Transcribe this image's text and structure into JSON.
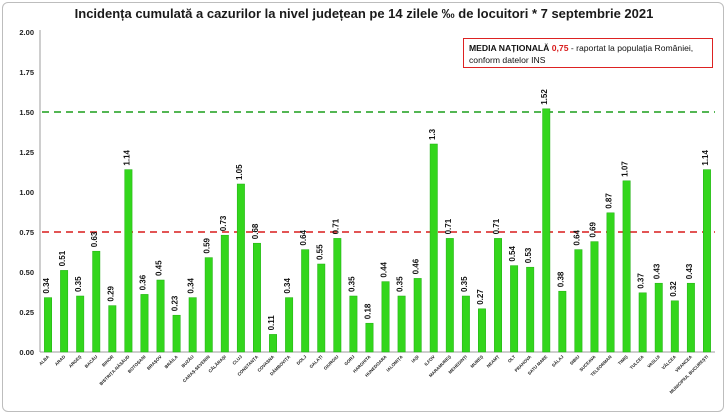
{
  "title": "Incidența cumulată a cazurilor la nivel județean pe 14 zilele ‰ de locuitori * 7 septembrie 2021",
  "note": {
    "bold": "MEDIA NAȚIONALĂ",
    "value": "0,75",
    "rest_line1": " - raportat la populația României,",
    "line2": "conform datelor INS"
  },
  "colors": {
    "bar": "#33d61c",
    "bar_stroke": "#1fae10",
    "national_line": "#d81b1b",
    "max_line": "#1a9e1a"
  },
  "chart_data": {
    "type": "bar",
    "title": "Incidența cumulată a cazurilor la nivel județean pe 14 zilele ‰ de locuitori * 7 septembrie 2021",
    "categories": [
      "ALBA",
      "ARAD",
      "ARGEȘ",
      "BACĂU",
      "BIHOR",
      "BISTRIȚA-NĂSĂUD",
      "BOTOȘANI",
      "BRAȘOV",
      "BRĂILA",
      "BUZĂU",
      "CARAȘ-SEVERIN",
      "CĂLĂRAȘI",
      "CLUJ",
      "CONSTANȚA",
      "COVASNA",
      "DÂMBOVIȚA",
      "DOLJ",
      "GALAȚI",
      "GIURGIU",
      "GORJ",
      "HARGHITA",
      "HUNEDOARA",
      "IALOMIȚA",
      "IAȘI",
      "ILFOV",
      "MARAMUREȘ",
      "MEHEDINȚI",
      "MUREȘ",
      "NEAMȚ",
      "OLT",
      "PRAHOVA",
      "SATU MARE",
      "SĂLAJ",
      "SIBIU",
      "SUCEAVA",
      "TELEORMAN",
      "TIMIȘ",
      "TULCEA",
      "VASLUI",
      "VÂLCEA",
      "VRANCEA",
      "MUNICIPIUL BUCUREȘTI"
    ],
    "values": [
      0.34,
      0.51,
      0.35,
      0.63,
      0.29,
      1.14,
      0.36,
      0.45,
      0.23,
      0.34,
      0.59,
      0.73,
      1.05,
      0.68,
      0.11,
      0.34,
      0.64,
      0.55,
      0.71,
      0.35,
      0.18,
      0.44,
      0.35,
      0.46,
      1.3,
      0.71,
      0.35,
      0.27,
      0.71,
      0.54,
      0.53,
      1.52,
      0.38,
      0.64,
      0.69,
      0.87,
      1.07,
      0.37,
      0.43,
      0.32,
      0.43,
      1.14
    ],
    "labels": [
      "0.34",
      "0.51",
      "0.35",
      "0.63",
      "0.29",
      "1.14",
      "0.36",
      "0.45",
      "0.23",
      "0.34",
      "0.59",
      "0.73",
      "1.05",
      "0.68",
      "0.11",
      "0.34",
      "0.64",
      "0.55",
      "0.71",
      "0.35",
      "0.18",
      "0.44",
      "0.35",
      "0.46",
      "1.3",
      "0.71",
      "0.35",
      "0.27",
      "0.71",
      "0.54",
      "0.53",
      "1.52",
      "0.38",
      "0.64",
      "0.69",
      "0.87",
      "1.07",
      "0.37",
      "0.43",
      "0.32",
      "0.43",
      "1.14"
    ],
    "yticks": [
      "0.00",
      "0.25",
      "0.50",
      "0.75",
      "1.00",
      "1.25",
      "1.50",
      "1.75",
      "2.00"
    ],
    "ylim": [
      0,
      2.0
    ],
    "reference_lines": [
      {
        "value": 0.75,
        "color": "#d81b1b"
      },
      {
        "value": 1.5,
        "color": "#1a9e1a"
      }
    ],
    "grid": false,
    "xlabel": "",
    "ylabel": ""
  }
}
